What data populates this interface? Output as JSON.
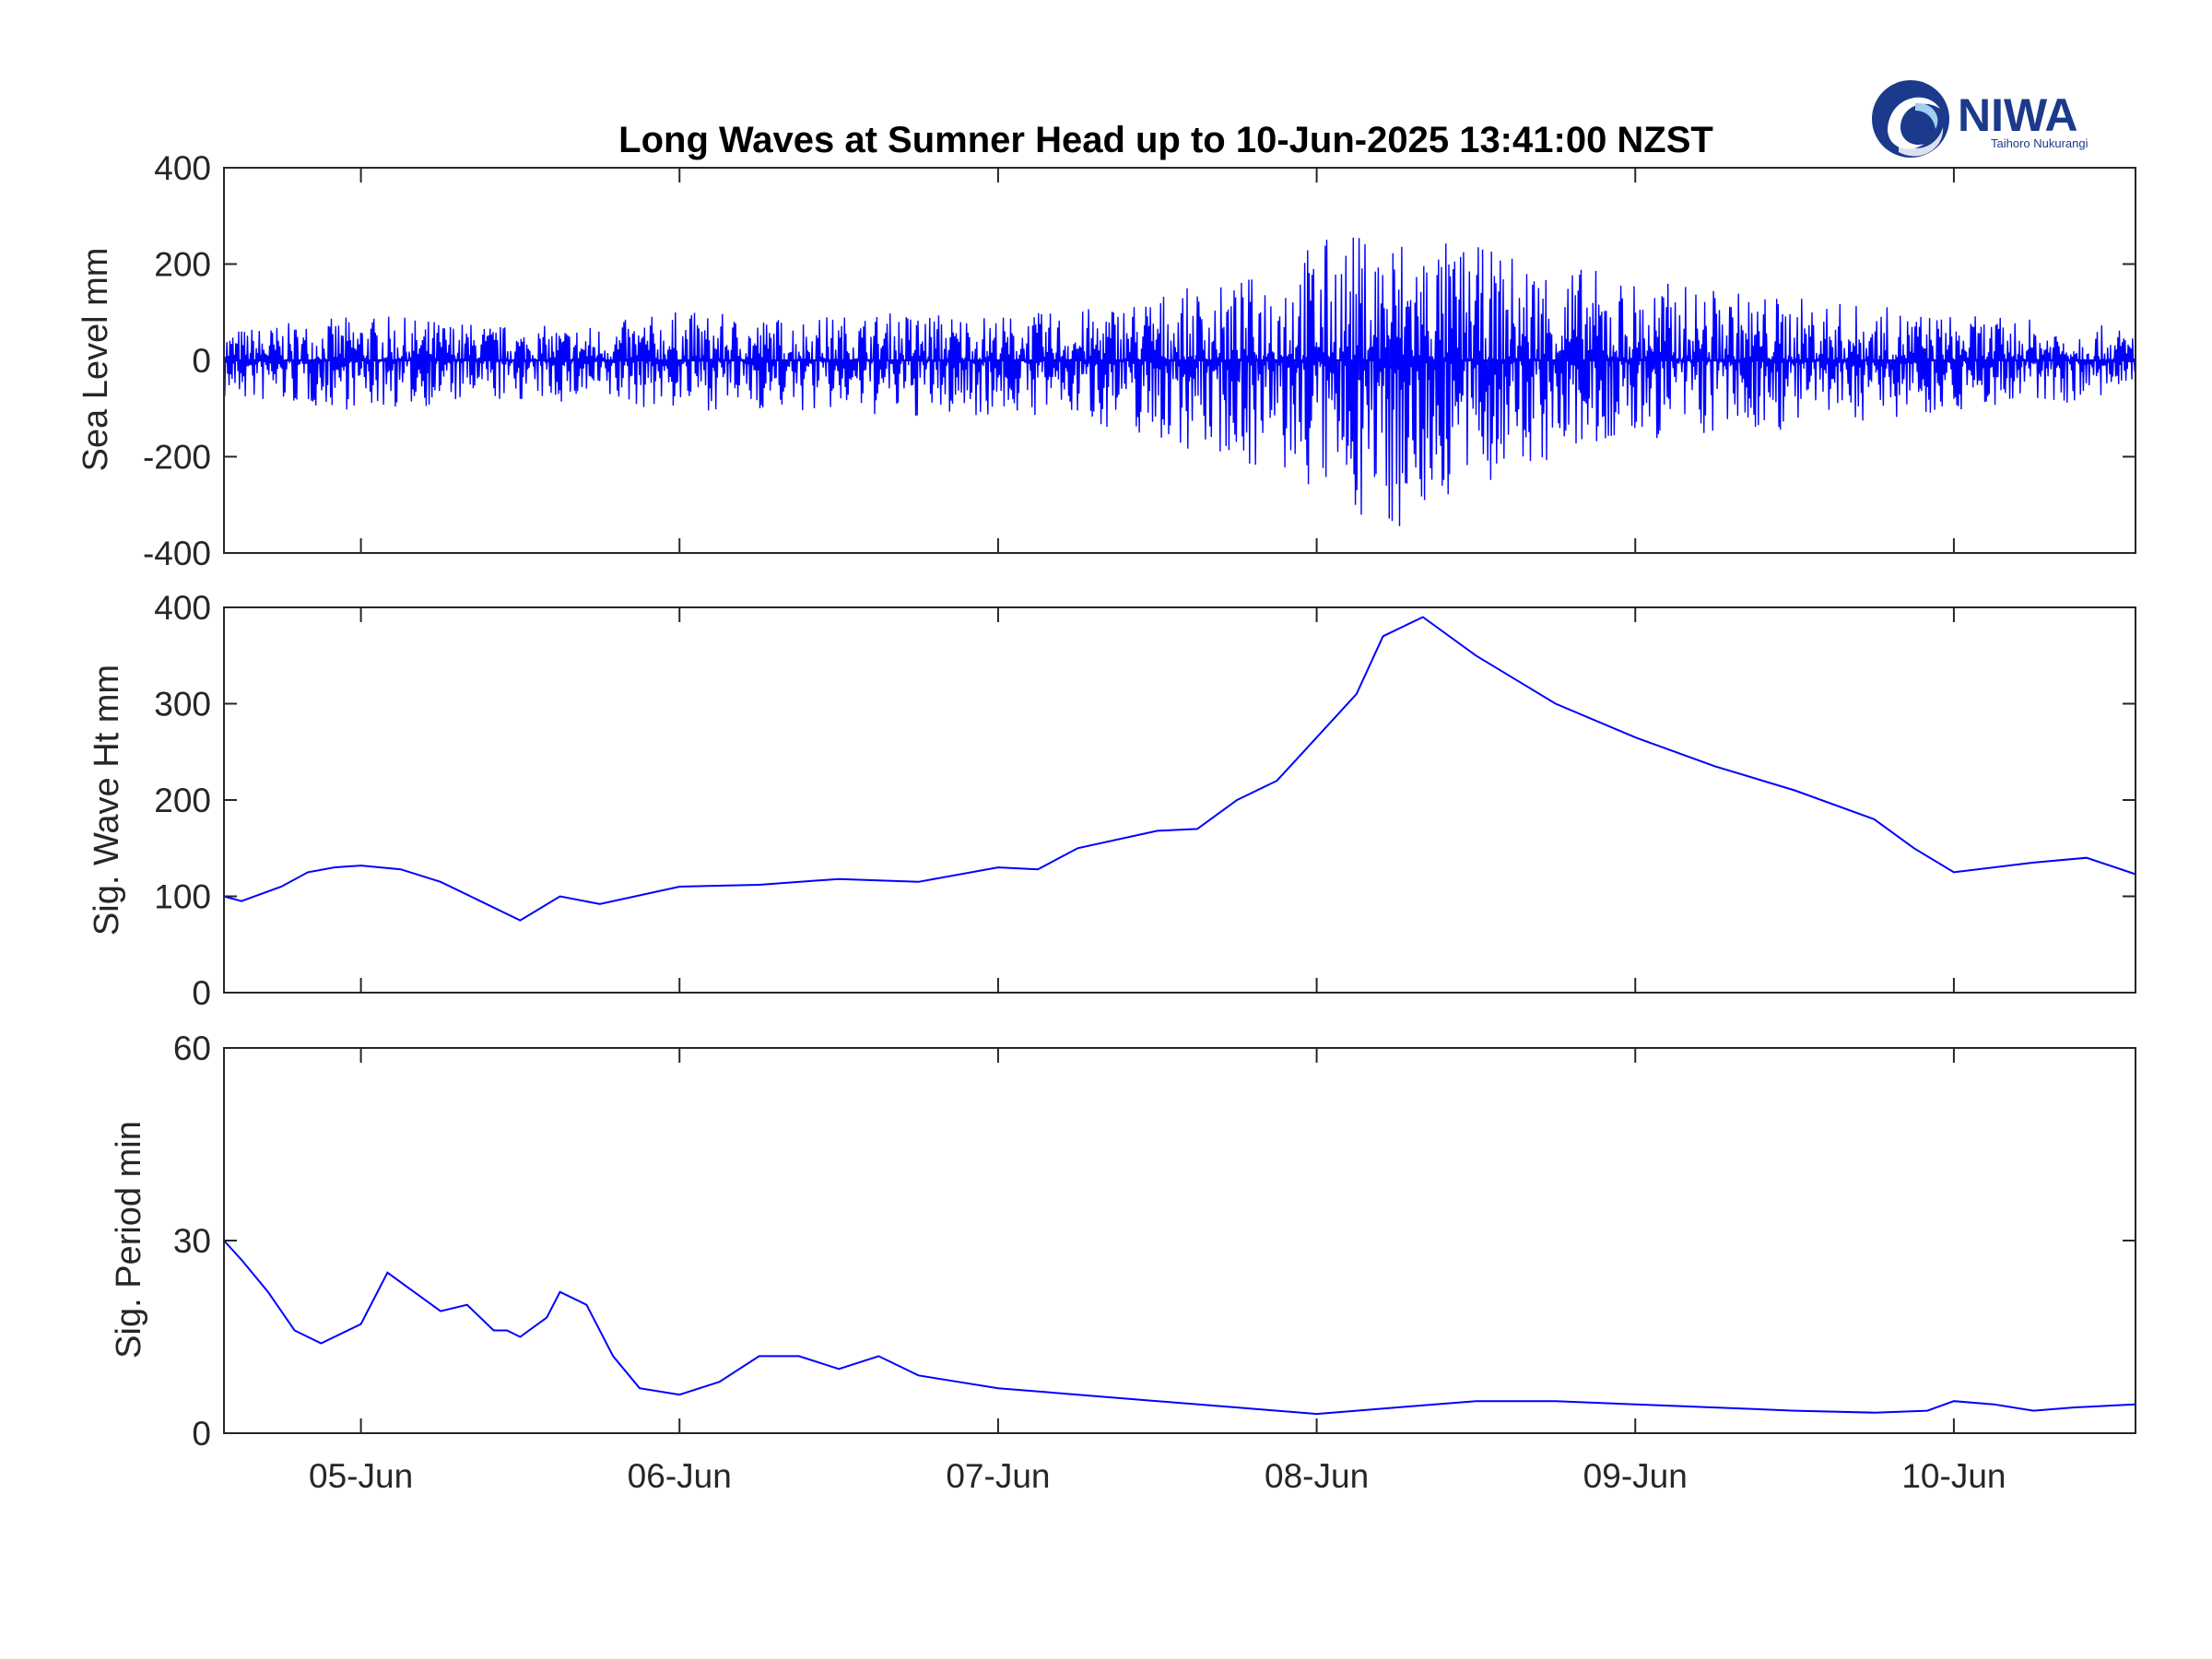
{
  "figure": {
    "title": "Long Waves at Sumner Head up to 10-Jun-2025 13:41:00 NZST"
  },
  "logo": {
    "name": "NIWA",
    "tagline": "Taihoro Nukurangi",
    "icon": "niwa-swirl-icon",
    "color": "#1b3a8c"
  },
  "colors": {
    "series": "#0000ff",
    "zero_line": "#000000",
    "axes": "#262626"
  },
  "chart_data": [
    {
      "type": "line",
      "ylabel": "Sea Level mm",
      "ylim": [
        -400,
        400
      ],
      "yticks": [
        "-400",
        "-200",
        "0",
        "200",
        "400"
      ],
      "zero_line": true,
      "grid": false,
      "series": [
        {
          "values_description_note": "",
          "x": [
            "04-Jun 13:41",
            "04-Jun 18:00",
            "05-Jun 00:00",
            "05-Jun 06:00",
            "05-Jun 12:00",
            "05-Jun 18:00",
            "06-Jun 00:00",
            "06-Jun 06:00",
            "06-Jun 12:00",
            "06-Jun 18:00",
            "07-Jun 00:00",
            "07-Jun 06:00",
            "07-Jun 12:00",
            "07-Jun 18:00",
            "08-Jun 00:00",
            "08-Jun 06:00",
            "08-Jun 12:00",
            "08-Jun 18:00",
            "09-Jun 00:00",
            "09-Jun 06:00",
            "09-Jun 12:00",
            "09-Jun 18:00",
            "10-Jun 00:00",
            "10-Jun 06:00",
            "10-Jun 13:41"
          ],
          "values": [
            70,
            80,
            100,
            90,
            75,
            80,
            110,
            95,
            100,
            110,
            100,
            110,
            150,
            170,
            270,
            290,
            250,
            220,
            180,
            160,
            140,
            120,
            100,
            90,
            70
          ],
          "min_values": [
            -90,
            -100,
            -110,
            -100,
            -90,
            -100,
            -110,
            -110,
            -120,
            -130,
            -120,
            -130,
            -180,
            -220,
            -300,
            -380,
            -280,
            -230,
            -180,
            -170,
            -150,
            -130,
            -110,
            -100,
            -80
          ]
        }
      ]
    },
    {
      "type": "line",
      "ylabel": "Sig. Wave Ht mm",
      "ylim": [
        0,
        400
      ],
      "yticks": [
        "0",
        "100",
        "200",
        "300",
        "400"
      ],
      "grid": false,
      "series": [
        {
          "x": [
            "04-Jun 13:41",
            "04-Jun 15:00",
            "04-Jun 18:00",
            "04-Jun 20:00",
            "04-Jun 22:00",
            "05-Jun 00:00",
            "05-Jun 03:00",
            "05-Jun 06:00",
            "05-Jun 09:00",
            "05-Jun 12:00",
            "05-Jun 15:00",
            "05-Jun 18:00",
            "06-Jun 00:00",
            "06-Jun 06:00",
            "06-Jun 12:00",
            "06-Jun 18:00",
            "07-Jun 00:00",
            "07-Jun 03:00",
            "07-Jun 06:00",
            "07-Jun 12:00",
            "07-Jun 15:00",
            "07-Jun 18:00",
            "07-Jun 21:00",
            "08-Jun 00:00",
            "08-Jun 03:00",
            "08-Jun 05:00",
            "08-Jun 08:00",
            "08-Jun 12:00",
            "08-Jun 18:00",
            "09-Jun 00:00",
            "09-Jun 06:00",
            "09-Jun 12:00",
            "09-Jun 18:00",
            "09-Jun 21:00",
            "10-Jun 00:00",
            "10-Jun 06:00",
            "10-Jun 10:00",
            "10-Jun 13:41"
          ],
          "values": [
            100,
            95,
            110,
            125,
            130,
            132,
            128,
            115,
            95,
            75,
            100,
            92,
            110,
            112,
            118,
            115,
            130,
            128,
            150,
            168,
            170,
            200,
            220,
            265,
            310,
            370,
            390,
            350,
            300,
            265,
            235,
            210,
            180,
            150,
            125,
            135,
            140,
            123
          ]
        }
      ]
    },
    {
      "type": "line",
      "ylabel": "Sig. Period min",
      "ylim": [
        0,
        60
      ],
      "yticks": [
        "0",
        "30",
        "60"
      ],
      "grid": false,
      "series": [
        {
          "x": [
            "04-Jun 13:41",
            "04-Jun 15:00",
            "04-Jun 17:00",
            "04-Jun 19:00",
            "04-Jun 21:00",
            "05-Jun 00:00",
            "05-Jun 02:00",
            "05-Jun 04:00",
            "05-Jun 06:00",
            "05-Jun 08:00",
            "05-Jun 10:00",
            "05-Jun 11:00",
            "05-Jun 12:00",
            "05-Jun 14:00",
            "05-Jun 15:00",
            "05-Jun 17:00",
            "05-Jun 19:00",
            "05-Jun 21:00",
            "06-Jun 00:00",
            "06-Jun 03:00",
            "06-Jun 06:00",
            "06-Jun 09:00",
            "06-Jun 12:00",
            "06-Jun 15:00",
            "06-Jun 18:00",
            "06-Jun 21:00",
            "07-Jun 00:00",
            "07-Jun 06:00",
            "07-Jun 12:00",
            "07-Jun 18:00",
            "08-Jun 00:00",
            "08-Jun 06:00",
            "08-Jun 12:00",
            "08-Jun 18:00",
            "09-Jun 00:00",
            "09-Jun 06:00",
            "09-Jun 12:00",
            "09-Jun 18:00",
            "09-Jun 22:00",
            "10-Jun 00:00",
            "10-Jun 03:00",
            "10-Jun 06:00",
            "10-Jun 09:00",
            "10-Jun 13:41"
          ],
          "values": [
            30,
            27,
            22,
            16,
            14,
            17,
            25,
            22,
            19,
            20,
            16,
            16,
            15,
            18,
            22,
            20,
            12,
            7,
            6,
            8,
            12,
            12,
            10,
            12,
            9,
            8,
            7,
            6,
            5,
            4,
            3,
            4,
            5,
            5,
            4.5,
            4,
            3.5,
            3.2,
            3.5,
            5,
            4.5,
            3.5,
            4,
            4.5
          ]
        }
      ]
    }
  ],
  "x_axis": {
    "type": "date",
    "range": [
      "04-Jun 13:41",
      "10-Jun 13:41"
    ],
    "tick_labels": [
      "05-Jun",
      "06-Jun",
      "07-Jun",
      "08-Jun",
      "09-Jun",
      "10-Jun"
    ]
  }
}
